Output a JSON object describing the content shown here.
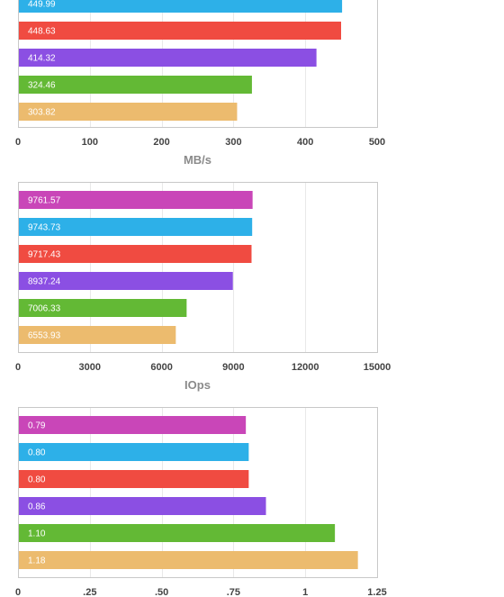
{
  "colors": [
    "#c946b8",
    "#2db0e8",
    "#f04b41",
    "#8b4fe3",
    "#63b935",
    "#ecbb6e"
  ],
  "chart_data": [
    {
      "type": "bar",
      "orientation": "horizontal",
      "xlabel": "MB/s",
      "xlim": [
        0,
        500
      ],
      "ticks": [
        0,
        100,
        200,
        300,
        400,
        500
      ],
      "tick_labels": [
        "0",
        "100",
        "200",
        "300",
        "400",
        "500"
      ],
      "grid": true,
      "values": [
        449.99,
        448.63,
        414.32,
        324.46,
        303.82
      ],
      "value_labels": [
        "449.99",
        "448.63",
        "414.32",
        "324.46",
        "303.82"
      ],
      "color_index_offset": 1
    },
    {
      "type": "bar",
      "orientation": "horizontal",
      "xlabel": "IOps",
      "xlim": [
        0,
        15000
      ],
      "ticks": [
        0,
        3000,
        6000,
        9000,
        12000,
        15000
      ],
      "tick_labels": [
        "0",
        "3000",
        "6000",
        "9000",
        "12000",
        "15000"
      ],
      "grid": true,
      "values": [
        9761.57,
        9743.73,
        9717.43,
        8937.24,
        7006.33,
        6553.93
      ],
      "value_labels": [
        "9761.57",
        "9743.73",
        "9717.43",
        "8937.24",
        "7006.33",
        "6553.93"
      ],
      "color_index_offset": 0
    },
    {
      "type": "bar",
      "orientation": "horizontal",
      "xlabel": "",
      "xlim": [
        0,
        1.25
      ],
      "ticks": [
        0,
        0.25,
        0.5,
        0.75,
        1,
        1.25
      ],
      "tick_labels": [
        "0",
        ".25",
        ".50",
        ".75",
        "1",
        "1.25"
      ],
      "grid": true,
      "values": [
        0.79,
        0.8,
        0.8,
        0.86,
        1.1,
        1.18
      ],
      "value_labels": [
        "0.79",
        "0.80",
        "0.80",
        "0.86",
        "1.10",
        "1.18"
      ],
      "color_index_offset": 0
    }
  ]
}
